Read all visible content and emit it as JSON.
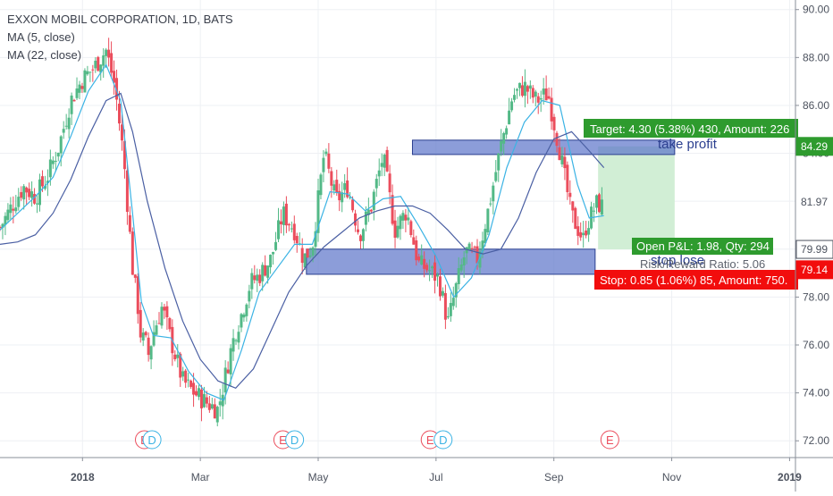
{
  "header": {
    "title": "EXXON MOBIL CORPORATION, 1D, BATS",
    "indicators": [
      "MA (5, close)",
      "MA (22, close)"
    ]
  },
  "colors": {
    "up": "#53b987",
    "down": "#eb4d5c",
    "ma5": "#3bb3e4",
    "ma22": "#4a5fa3",
    "zone_fill": "#5b74c9",
    "zone_stroke": "#2b3f8f",
    "target_label": "#2e9b2e",
    "stop_label": "#f20d0d",
    "profit_fill": "#d1eed5",
    "axis_text": "#4c525e",
    "grid": "#eef0f4"
  },
  "labels": {
    "take_profit": "take profit",
    "stop_loss": "stop lose",
    "target": "Target: 4.30 (5.38%) 430, Amount: 226",
    "stop": "Stop: 0.85 (1.06%) 85, Amount: 750.",
    "open_pl": "Open P&L: 1.98, Qty: 294",
    "risk_reward": "Risk/Reward Ratio: 5.06"
  },
  "price_tags": [
    {
      "text": "84.29",
      "bg": "#2e9b2e",
      "fg": "#ffffff"
    },
    {
      "text": "81.97",
      "bg": "#ffffff",
      "fg": "#4c525e"
    },
    {
      "text": "79.99",
      "bg": "#ffffff",
      "fg": "#4c525e",
      "border": true
    },
    {
      "text": "79.14",
      "bg": "#f20d0d",
      "fg": "#ffffff"
    }
  ],
  "event_markers": [
    {
      "label": "E",
      "color": "#eb4d5c",
      "month": 1.55
    },
    {
      "label": "D",
      "color": "#3bb3e4",
      "month": 1.68
    },
    {
      "label": "E",
      "color": "#eb4d5c",
      "month": 3.9
    },
    {
      "label": "D",
      "color": "#3bb3e4",
      "month": 4.1
    },
    {
      "label": "E",
      "color": "#eb4d5c",
      "month": 6.4
    },
    {
      "label": "D",
      "color": "#3bb3e4",
      "month": 6.62
    },
    {
      "label": "E",
      "color": "#eb4d5c",
      "month": 9.45
    }
  ],
  "chart_data": {
    "type": "candlestick",
    "title": "EXXON MOBIL CORPORATION, 1D, BATS",
    "x_ticks": [
      {
        "label": "2018",
        "month": 0.5
      },
      {
        "label": "Mar",
        "month": 2.5
      },
      {
        "label": "May",
        "month": 4.5
      },
      {
        "label": "Jul",
        "month": 6.5
      },
      {
        "label": "Sep",
        "month": 8.5
      },
      {
        "label": "Nov",
        "month": 10.5
      },
      {
        "label": "2019",
        "month": 12.5
      }
    ],
    "y_ticks": [
      72,
      74,
      76,
      78,
      80,
      82,
      84,
      86,
      88,
      90
    ],
    "ylim": [
      71.3,
      90.4
    ],
    "xlim": [
      -0.9,
      12.6
    ],
    "zones": [
      {
        "name": "resistance",
        "from_month": 6.1,
        "to_month": 10.55,
        "low": 83.95,
        "high": 84.55
      },
      {
        "name": "support",
        "from_month": 4.3,
        "to_month": 9.2,
        "low": 78.95,
        "high": 80.0
      }
    ],
    "position": {
      "start_month": 9.25,
      "end_month": 10.55,
      "entry": 79.99,
      "target": 84.29,
      "stop": 79.14
    },
    "series": [
      {
        "name": "Price",
        "x": [
          -0.9,
          -0.7,
          -0.5,
          -0.3,
          -0.1,
          0.1,
          0.3,
          0.5,
          0.7,
          0.9,
          1.05,
          1.2,
          1.35,
          1.45,
          1.5,
          1.55,
          1.62,
          1.7,
          1.85,
          2.0,
          2.2,
          2.4,
          2.6,
          2.8,
          3.0,
          3.1,
          3.2,
          3.35,
          3.5,
          3.7,
          3.9,
          4.1,
          4.25,
          4.4,
          4.6,
          4.8,
          5.0,
          5.2,
          5.4,
          5.6,
          5.8,
          6.0,
          6.2,
          6.4,
          6.55,
          6.7,
          6.85,
          7.0,
          7.2,
          7.4,
          7.6,
          7.8,
          8.0,
          8.2,
          8.4,
          8.6,
          8.8,
          9.0,
          9.05,
          9.15,
          9.2,
          9.25,
          9.3,
          9.35
        ],
        "values": [
          80.9,
          81.8,
          82.6,
          82.2,
          83.0,
          84.3,
          86.2,
          87.1,
          87.6,
          88.3,
          86.8,
          83.8,
          79.2,
          77.4,
          76.1,
          76.3,
          75.6,
          76.5,
          77.6,
          76.2,
          74.5,
          74.0,
          73.6,
          73.3,
          75.6,
          76.6,
          77.3,
          78.6,
          78.9,
          79.6,
          81.5,
          80.8,
          79.6,
          80.1,
          84.0,
          82.0,
          82.6,
          80.6,
          81.8,
          83.9,
          80.8,
          81.6,
          79.4,
          79.1,
          78.7,
          76.9,
          78.5,
          79.9,
          79.6,
          81.8,
          84.3,
          86.4,
          86.8,
          86.2,
          86.5,
          84.1,
          81.4,
          80.4,
          81.0,
          81.5,
          81.8,
          81.97,
          81.7,
          81.97
        ]
      },
      {
        "name": "MA (5, close)",
        "x": [
          -0.9,
          -0.6,
          -0.3,
          0.0,
          0.3,
          0.6,
          0.9,
          1.15,
          1.35,
          1.5,
          1.7,
          2.0,
          2.3,
          2.6,
          2.9,
          3.2,
          3.5,
          3.8,
          4.1,
          4.4,
          4.7,
          5.0,
          5.3,
          5.6,
          5.9,
          6.2,
          6.5,
          6.8,
          7.1,
          7.4,
          7.7,
          8.0,
          8.3,
          8.6,
          8.9,
          9.1,
          9.35
        ],
        "values": [
          80.8,
          81.5,
          82.2,
          83.0,
          84.7,
          86.6,
          87.7,
          86.2,
          81.5,
          77.8,
          76.4,
          76.3,
          74.9,
          74.0,
          73.7,
          75.8,
          78.2,
          79.2,
          80.2,
          80.2,
          82.4,
          82.3,
          81.6,
          82.1,
          82.2,
          81.0,
          79.7,
          78.0,
          78.8,
          80.6,
          83.4,
          85.3,
          86.2,
          86.0,
          82.7,
          81.3,
          81.4
        ]
      },
      {
        "name": "MA (22, close)",
        "x": [
          -0.9,
          -0.6,
          -0.3,
          0.0,
          0.3,
          0.6,
          0.9,
          1.15,
          1.35,
          1.6,
          1.9,
          2.2,
          2.5,
          2.8,
          3.1,
          3.4,
          3.7,
          4.0,
          4.3,
          4.6,
          4.9,
          5.2,
          5.5,
          5.8,
          6.1,
          6.4,
          6.7,
          7.0,
          7.3,
          7.6,
          7.9,
          8.2,
          8.5,
          8.8,
          9.1,
          9.35
        ],
        "values": [
          80.2,
          80.3,
          80.6,
          81.5,
          82.9,
          84.7,
          86.2,
          86.5,
          84.9,
          82.0,
          79.2,
          77.0,
          75.4,
          74.5,
          74.2,
          75.0,
          76.6,
          78.2,
          79.3,
          80.1,
          80.7,
          81.3,
          81.6,
          81.8,
          81.8,
          81.5,
          80.8,
          80.0,
          79.8,
          80.0,
          81.3,
          83.2,
          84.6,
          84.9,
          84.1,
          83.4
        ]
      }
    ]
  }
}
